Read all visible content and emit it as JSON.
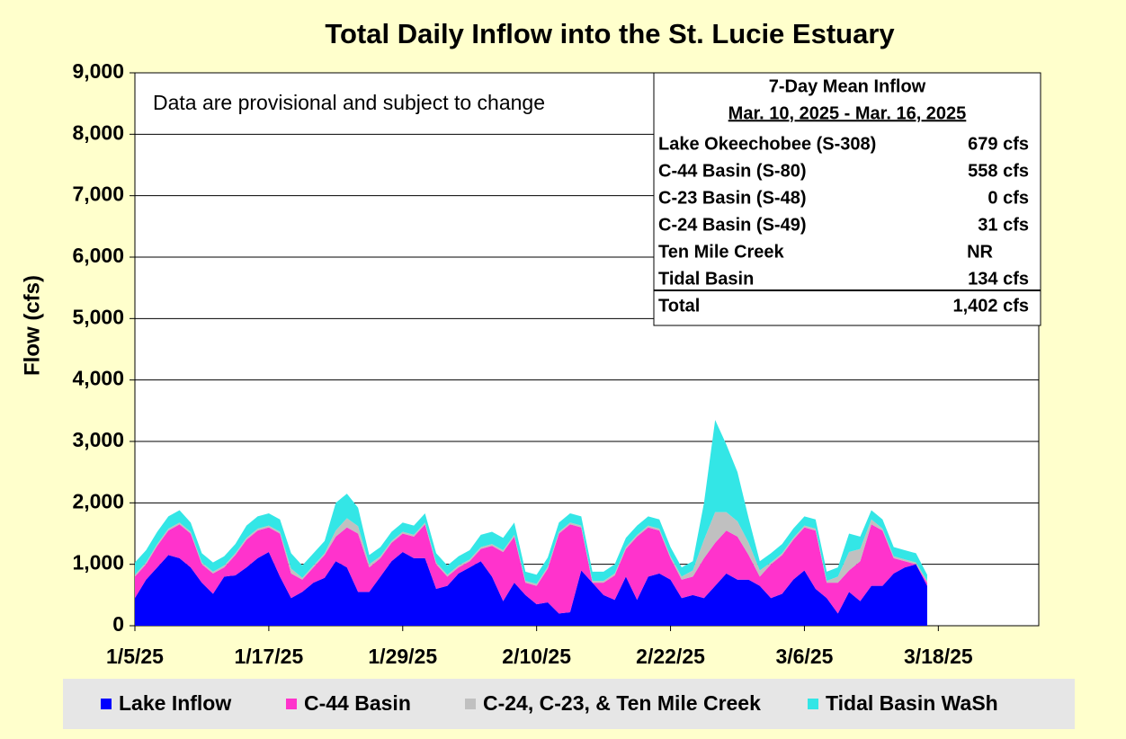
{
  "chart_data": {
    "type": "stacked-area",
    "title": "Total Daily Inflow into the St. Lucie Estuary",
    "y_label": "Flow (cfs)",
    "note": "Data are provisional and subject to change",
    "x": [
      "1/5/25",
      "1/6/25",
      "1/7/25",
      "1/8/25",
      "1/9/25",
      "1/10/25",
      "1/11/25",
      "1/12/25",
      "1/13/25",
      "1/14/25",
      "1/15/25",
      "1/16/25",
      "1/17/25",
      "1/18/25",
      "1/19/25",
      "1/20/25",
      "1/21/25",
      "1/22/25",
      "1/23/25",
      "1/24/25",
      "1/25/25",
      "1/26/25",
      "1/27/25",
      "1/28/25",
      "1/29/25",
      "1/30/25",
      "1/31/25",
      "2/1/25",
      "2/2/25",
      "2/3/25",
      "2/4/25",
      "2/5/25",
      "2/6/25",
      "2/7/25",
      "2/8/25",
      "2/9/25",
      "2/10/25",
      "2/11/25",
      "2/12/25",
      "2/13/25",
      "2/14/25",
      "2/15/25",
      "2/16/25",
      "2/17/25",
      "2/18/25",
      "2/19/25",
      "2/20/25",
      "2/21/25",
      "2/22/25",
      "2/23/25",
      "2/24/25",
      "2/25/25",
      "2/26/25",
      "2/27/25",
      "2/28/25",
      "3/1/25",
      "3/2/25",
      "3/3/25",
      "3/4/25",
      "3/5/25",
      "3/6/25",
      "3/7/25",
      "3/8/25",
      "3/9/25",
      "3/10/25",
      "3/11/25",
      "3/12/25",
      "3/13/25",
      "3/14/25",
      "3/15/25",
      "3/16/25",
      "3/17/25"
    ],
    "xlim": [
      "1/5/25",
      "3/27/25"
    ],
    "xticks": [
      "1/5/25",
      "1/17/25",
      "1/29/25",
      "2/10/25",
      "2/22/25",
      "3/6/25",
      "3/18/25"
    ],
    "ylim": [
      0,
      9000
    ],
    "yticks": [
      0,
      {
        "value": 1000,
        "label": "1,000"
      },
      {
        "value": 2000,
        "label": "2,000"
      },
      {
        "value": 3000,
        "label": "3,000"
      },
      {
        "value": 4000,
        "label": "4,000"
      },
      {
        "value": 5000,
        "label": "5,000"
      },
      {
        "value": 6000,
        "label": "6,000"
      },
      {
        "value": 7000,
        "label": "7,000"
      },
      {
        "value": 8000,
        "label": "8,000"
      },
      {
        "value": 9000,
        "label": "9,000"
      }
    ],
    "grid": true,
    "series": [
      {
        "name": "Lake Inflow",
        "color": "#0000ff",
        "values": [
          450,
          750,
          950,
          1150,
          1100,
          950,
          700,
          520,
          800,
          820,
          950,
          1100,
          1200,
          800,
          450,
          550,
          700,
          780,
          1050,
          950,
          550,
          550,
          800,
          1050,
          1200,
          1100,
          1100,
          600,
          650,
          850,
          950,
          1050,
          800,
          400,
          700,
          500,
          350,
          380,
          200,
          220,
          900,
          700,
          500,
          420,
          800,
          420,
          800,
          850,
          750,
          450,
          500,
          450,
          650,
          850,
          750,
          750,
          650,
          450,
          520,
          750,
          900,
          600,
          450,
          200,
          550,
          400,
          650,
          650,
          850,
          950,
          1000,
          650
        ]
      },
      {
        "name": "C-44 Basin",
        "color": "#ff33cc",
        "values": [
          350,
          250,
          350,
          400,
          550,
          550,
          300,
          330,
          150,
          330,
          450,
          450,
          400,
          700,
          400,
          200,
          250,
          370,
          400,
          650,
          950,
          400,
          300,
          300,
          300,
          350,
          550,
          400,
          150,
          100,
          100,
          200,
          500,
          800,
          750,
          200,
          300,
          550,
          1300,
          1430,
          700,
          0,
          200,
          400,
          450,
          1030,
          800,
          700,
          350,
          300,
          300,
          650,
          700,
          700,
          700,
          400,
          150,
          550,
          630,
          650,
          700,
          950,
          250,
          500,
          350,
          650,
          1000,
          900,
          250,
          100,
          0,
          50
        ]
      },
      {
        "name": "C-24, C-23, & Ten Mile Creek",
        "color": "#c0c0c0",
        "values": [
          30,
          30,
          30,
          30,
          30,
          30,
          30,
          30,
          30,
          30,
          30,
          30,
          30,
          30,
          80,
          30,
          30,
          30,
          100,
          150,
          120,
          50,
          30,
          30,
          30,
          30,
          30,
          30,
          30,
          30,
          30,
          30,
          30,
          30,
          30,
          30,
          30,
          30,
          30,
          30,
          30,
          30,
          30,
          30,
          30,
          30,
          30,
          30,
          30,
          50,
          100,
          300,
          500,
          300,
          250,
          200,
          100,
          30,
          30,
          30,
          30,
          30,
          30,
          100,
          300,
          200,
          80,
          30,
          30,
          30,
          30,
          30
        ]
      },
      {
        "name": "Tidal Basin WaSh",
        "color": "#33e6e6",
        "values": [
          200,
          200,
          200,
          200,
          200,
          150,
          150,
          150,
          150,
          150,
          200,
          200,
          200,
          200,
          250,
          200,
          200,
          200,
          450,
          400,
          300,
          150,
          150,
          150,
          150,
          150,
          150,
          150,
          150,
          150,
          150,
          200,
          200,
          200,
          200,
          150,
          150,
          150,
          150,
          150,
          150,
          150,
          150,
          150,
          150,
          150,
          150,
          150,
          150,
          150,
          150,
          600,
          1500,
          1100,
          800,
          400,
          150,
          150,
          150,
          150,
          150,
          150,
          150,
          150,
          300,
          200,
          150,
          150,
          150,
          150,
          150,
          100
        ]
      }
    ],
    "table": {
      "title": "7-Day Mean Inflow",
      "period": "Mar. 10, 2025 - Mar. 16, 2025",
      "rows": [
        [
          "Lake Okeechobee (S-308)",
          "679 cfs"
        ],
        [
          "C-44 Basin (S-80)",
          "558 cfs"
        ],
        [
          "C-23 Basin (S-48)",
          "0 cfs"
        ],
        [
          "C-24 Basin (S-49)",
          "31 cfs"
        ],
        [
          "Ten Mile Creek",
          "NR"
        ],
        [
          "Tidal Basin",
          "134 cfs"
        ]
      ],
      "total": [
        "Total",
        "1,402 cfs"
      ]
    }
  }
}
